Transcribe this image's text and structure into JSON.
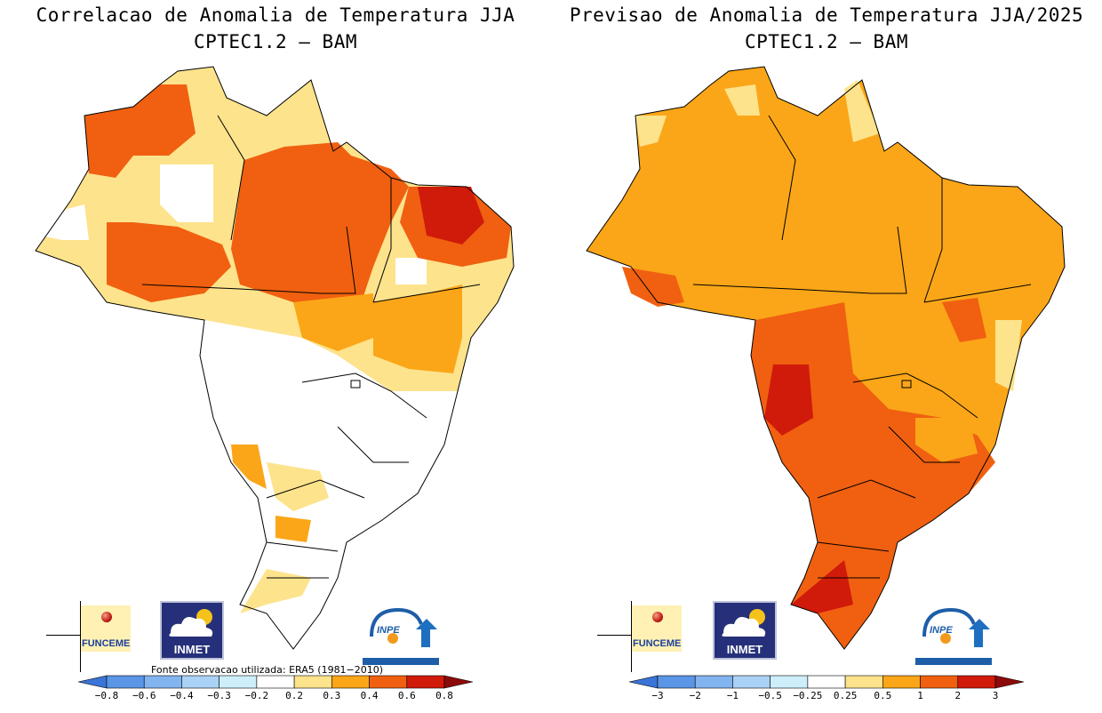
{
  "left_panel": {
    "title_line1": "Correlacao de Anomalia de Temperatura JJA",
    "title_line2": "CPTEC1.2 — BAM",
    "source_note": "Fonte observacao utilizada: ERA5 (1981−2010)",
    "colorbar": {
      "labels": [
        "−0.8",
        "−0.6",
        "−0.4",
        "−0.3",
        "−0.2",
        "0.2",
        "0.3",
        "0.4",
        "0.6",
        "0.8"
      ],
      "colors": [
        "#3a74d6",
        "#5a95e6",
        "#82b4f0",
        "#aad2f6",
        "#cdeefa",
        "#ffffff",
        "#fde38c",
        "#fba618",
        "#f06010",
        "#d01a0a",
        "#8c0a0a"
      ]
    }
  },
  "right_panel": {
    "title_line1": "Previsao de Anomalia de Temperatura JJA/2025",
    "title_line2": "CPTEC1.2 — BAM",
    "colorbar": {
      "labels": [
        "−3",
        "−2",
        "−1",
        "−0.5",
        "−0.25",
        "0.25",
        "0.5",
        "1",
        "2",
        "3"
      ],
      "colors": [
        "#3a74d6",
        "#5a95e6",
        "#82b4f0",
        "#aad2f6",
        "#cdeefa",
        "#ffffff",
        "#fde38c",
        "#fba618",
        "#f06010",
        "#d01a0a",
        "#8c0a0a"
      ]
    }
  },
  "logos": {
    "funceme": "FUNCEME",
    "inmet": "INMET",
    "inpe": "INPE"
  },
  "palette": {
    "white": "#ffffff",
    "light_yellow": "#fde38c",
    "orange": "#fba618",
    "dark_orange": "#f06010",
    "red": "#d01a0a",
    "dark_red": "#8c0a0a"
  }
}
